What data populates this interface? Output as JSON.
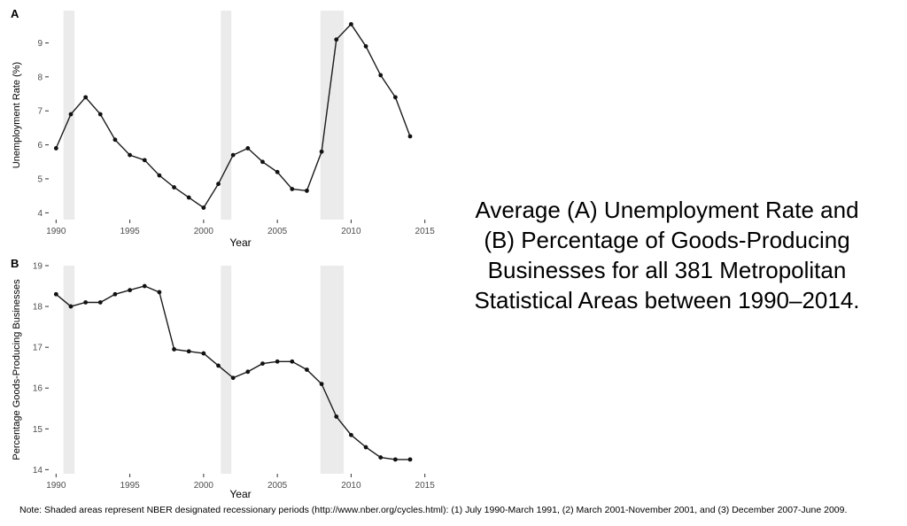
{
  "caption_lines": [
    "Average (A) Unemployment Rate and",
    "(B) Percentage of Goods-Producing",
    "Businesses for all 381 Metropolitan",
    "Statistical Areas between 1990–2014."
  ],
  "note": "Note: Shaded areas represent NBER designated recessionary periods (http://www.nber.org/cycles.html): (1) July 1990-March 1991, (2) March 2001-November 2001, and (3) December 2007-June 2009.",
  "colors": {
    "line": "#1a1a1a",
    "point": "#111111",
    "recession": "#ebebeb",
    "tick_text": "#4d4d4d"
  },
  "chart_data": [
    {
      "panel_label": "A",
      "type": "line",
      "xlabel": "Year",
      "ylabel": "Unemployment Rate (%)",
      "xlim": [
        1989.5,
        2015.5
      ],
      "ylim": [
        3.8,
        9.95
      ],
      "xticks": [
        1990,
        1995,
        2000,
        2005,
        2010,
        2015
      ],
      "yticks": [
        4,
        5,
        6,
        7,
        8,
        9
      ],
      "grid": false,
      "recessions": [
        [
          1990.5,
          1991.25
        ],
        [
          2001.17,
          2001.88
        ],
        [
          2007.92,
          2009.5
        ]
      ],
      "x": [
        1990,
        1991,
        1992,
        1993,
        1994,
        1995,
        1996,
        1997,
        1998,
        1999,
        2000,
        2001,
        2002,
        2003,
        2004,
        2005,
        2006,
        2007,
        2008,
        2009,
        2010,
        2011,
        2012,
        2013,
        2014
      ],
      "y": [
        5.9,
        6.9,
        7.4,
        6.9,
        6.15,
        5.7,
        5.55,
        5.1,
        4.75,
        4.45,
        4.15,
        4.85,
        5.7,
        5.9,
        5.5,
        5.2,
        4.7,
        4.65,
        5.8,
        9.1,
        9.55,
        8.9,
        8.05,
        7.4,
        6.25
      ]
    },
    {
      "panel_label": "B",
      "type": "line",
      "xlabel": "Year",
      "ylabel": "Percentage Goods-Producing Businesses",
      "xlim": [
        1989.5,
        2015.5
      ],
      "ylim": [
        13.9,
        19.0
      ],
      "xticks": [
        1990,
        1995,
        2000,
        2005,
        2010,
        2015
      ],
      "yticks": [
        14,
        15,
        16,
        17,
        18,
        19
      ],
      "grid": false,
      "recessions": [
        [
          1990.5,
          1991.25
        ],
        [
          2001.17,
          2001.88
        ],
        [
          2007.92,
          2009.5
        ]
      ],
      "x": [
        1990,
        1991,
        1992,
        1993,
        1994,
        1995,
        1996,
        1997,
        1998,
        1999,
        2000,
        2001,
        2002,
        2003,
        2004,
        2005,
        2006,
        2007,
        2008,
        2009,
        2010,
        2011,
        2012,
        2013,
        2014
      ],
      "y": [
        18.3,
        18.0,
        18.1,
        18.1,
        18.3,
        18.4,
        18.5,
        18.35,
        16.95,
        16.9,
        16.85,
        16.55,
        16.25,
        16.4,
        16.6,
        16.65,
        16.65,
        16.45,
        16.1,
        15.3,
        14.85,
        14.55,
        14.3,
        14.25,
        14.25
      ]
    }
  ]
}
